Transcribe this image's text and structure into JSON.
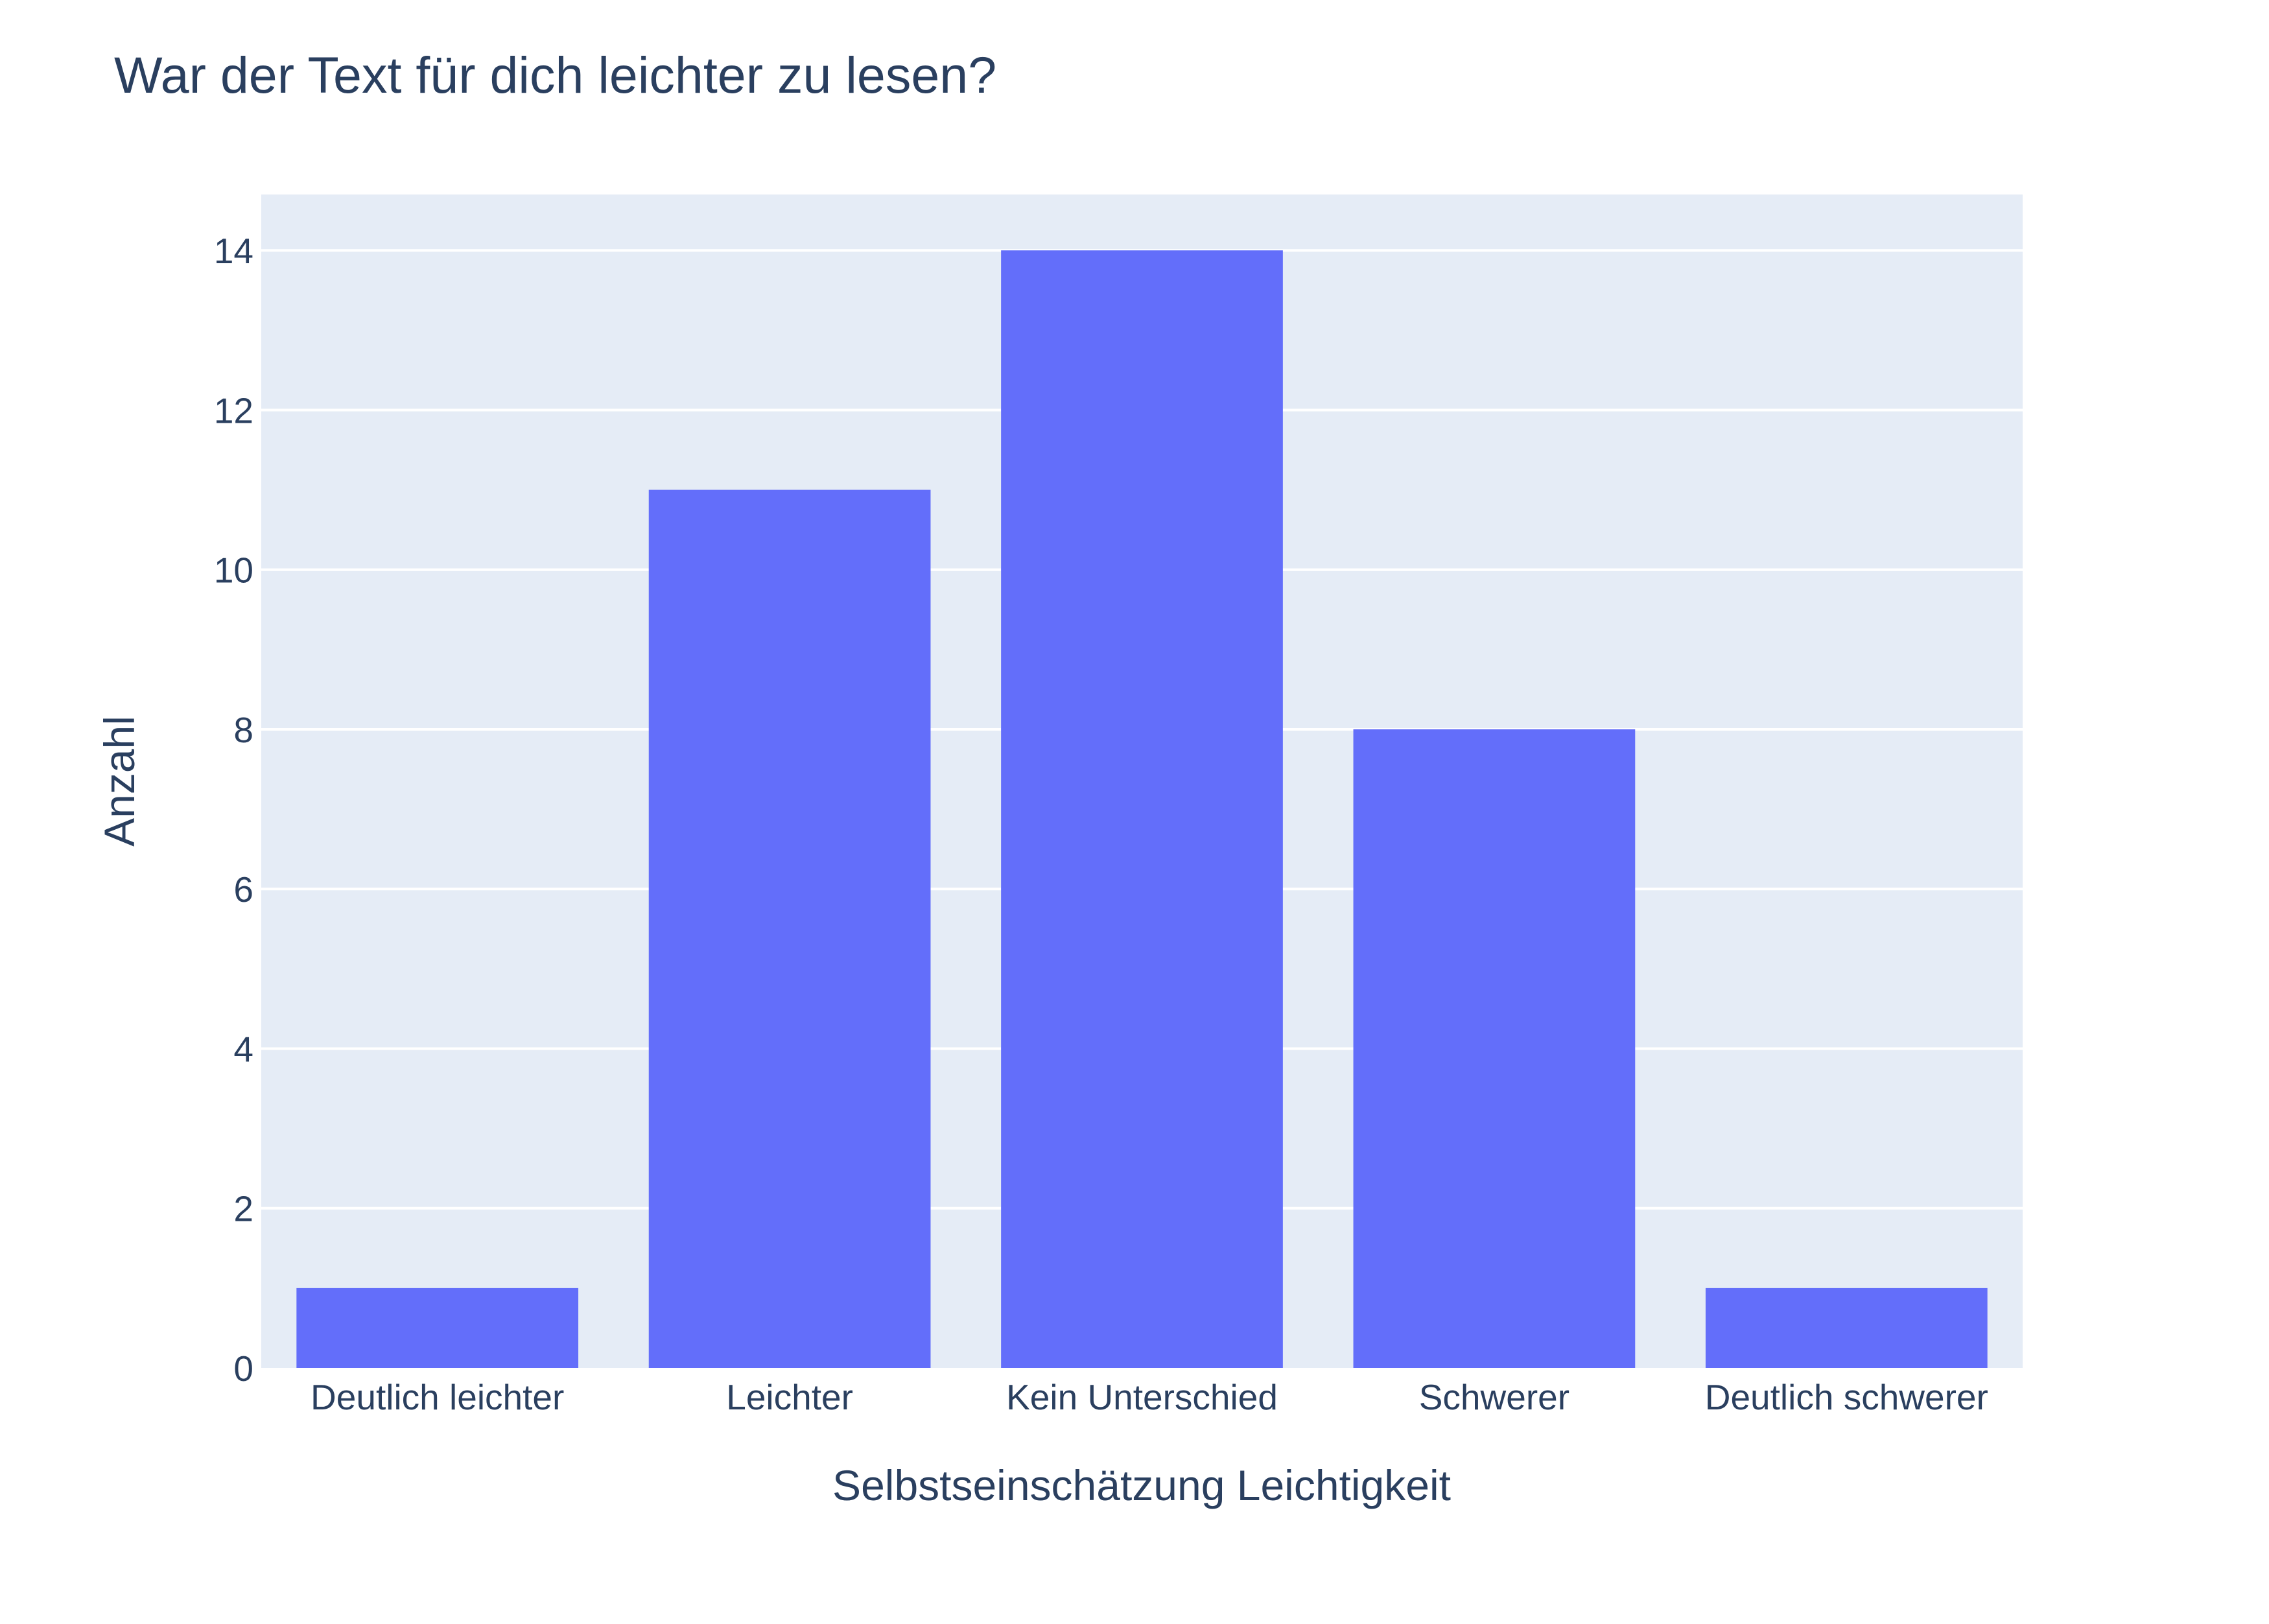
{
  "chart_data": {
    "type": "bar",
    "title": "War der Text für dich leichter zu lesen?",
    "xlabel": "Selbstseinschätzung Leichtigkeit",
    "ylabel": "Anzahl",
    "categories": [
      "Deutlich leichter",
      "Leichter",
      "Kein Unterschied",
      "Schwerer",
      "Deutlich schwerer"
    ],
    "values": [
      1,
      11,
      14,
      8,
      1
    ],
    "ylim": [
      0,
      14.7
    ],
    "yticks": [
      0,
      2,
      4,
      6,
      8,
      10,
      12,
      14
    ],
    "grid": true,
    "legend": "none",
    "colors": {
      "bar": "#636efa",
      "plot_background": "#e5ecf6",
      "grid": "#ffffff",
      "text": "#2a3f5f"
    }
  }
}
